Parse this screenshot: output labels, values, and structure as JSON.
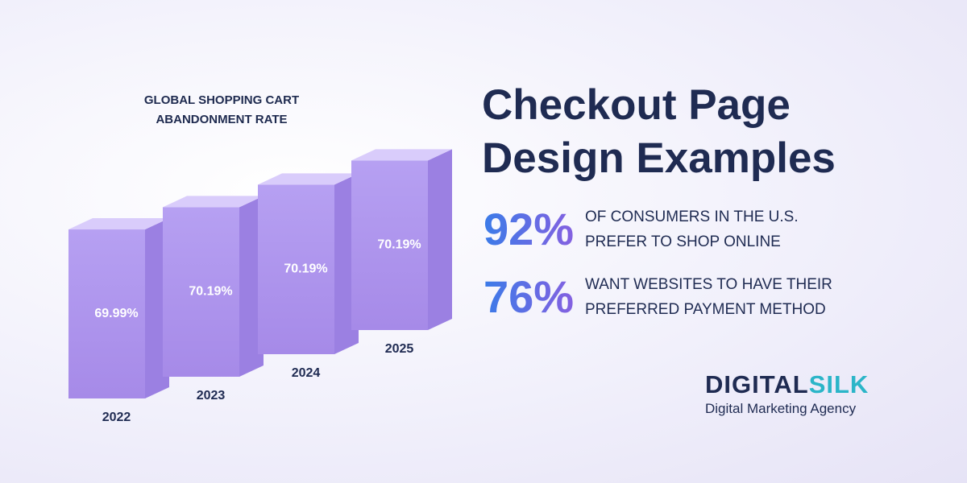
{
  "chart_data": {
    "type": "bar3d",
    "title": "GLOBAL SHOPPING CART ABANDONMENT RATE",
    "categories": [
      "2022",
      "2023",
      "2024",
      "2025"
    ],
    "values": [
      69.99,
      70.19,
      70.19,
      70.19
    ],
    "value_labels": [
      "69.99%",
      "70.19%",
      "70.19%",
      "70.19%"
    ],
    "color": "#b6a0f2"
  },
  "headline": "Checkout Page Design Examples",
  "stats": [
    {
      "value": "92%",
      "text": "OF CONSUMERS IN THE U.S. PREFER TO SHOP ONLINE"
    },
    {
      "value": "76%",
      "text": "WANT WEBSITES TO HAVE THEIR PREFERRED PAYMENT METHOD"
    }
  ],
  "brand": {
    "name_part1": "DIGITAL",
    "name_part2": "SILK",
    "tagline": "Digital Marketing Agency"
  }
}
